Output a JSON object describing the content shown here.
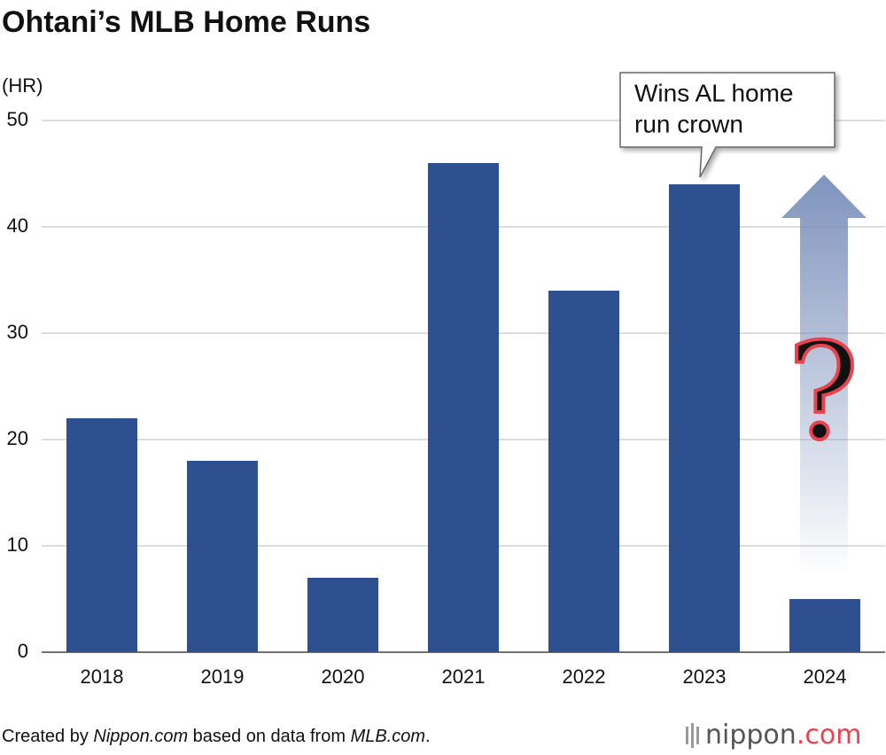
{
  "chart_data": {
    "type": "bar",
    "title": "Ohtani’s MLB Home Runs",
    "y_label": "(HR)",
    "categories": [
      "2018",
      "2019",
      "2020",
      "2021",
      "2022",
      "2023",
      "2024"
    ],
    "values": [
      22,
      18,
      7,
      46,
      34,
      44,
      5
    ],
    "color": "#2f5090",
    "ylim": [
      0,
      50
    ],
    "yticks": [
      0,
      10,
      20,
      30,
      40,
      50
    ],
    "grid": true,
    "annotation": {
      "lines": [
        "Wins AL home",
        "run crown"
      ]
    },
    "question": "?",
    "source": [
      "Created by ",
      "Nippon.com",
      " based on data from ",
      "MLB.com",
      "."
    ],
    "logo": {
      "name": "nippon",
      "tld": ".com"
    }
  }
}
